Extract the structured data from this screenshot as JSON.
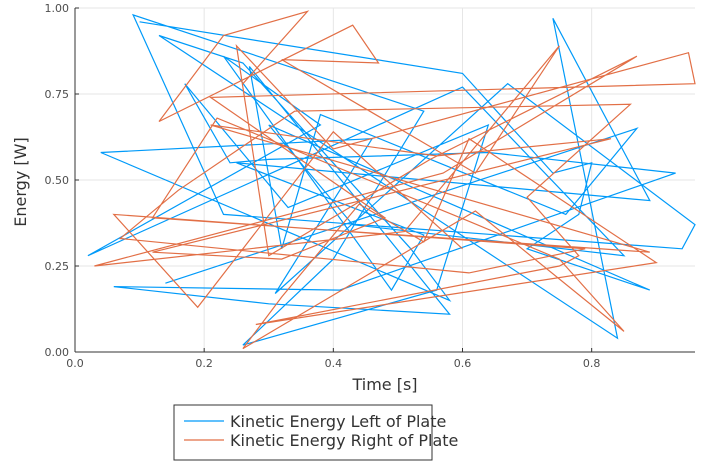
{
  "chart_data": {
    "type": "line",
    "xlabel": "Time [s]",
    "ylabel": "Energy [W]",
    "xlim": [
      0.0,
      0.96
    ],
    "ylim": [
      0.0,
      1.0
    ],
    "xticks": [
      0.0,
      0.2,
      0.4,
      0.6,
      0.8
    ],
    "xtick_labels": [
      "0.0",
      "0.2",
      "0.4",
      "0.6",
      "0.8"
    ],
    "yticks": [
      0.0,
      0.25,
      0.5,
      0.75,
      1.0
    ],
    "ytick_labels": [
      "0.00",
      "0.25",
      "0.50",
      "0.75",
      "1.00"
    ],
    "grid": true,
    "legend_position": "bottom-left, below plot",
    "series": [
      {
        "name": "Kinetic Energy Left of Plate",
        "color": "#009af9",
        "x": [
          0.1,
          0.6,
          0.74,
          0.8,
          0.78,
          0.7,
          0.89,
          0.3,
          0.43,
          0.85,
          0.6,
          0.02,
          0.38,
          0.23,
          0.49,
          0.54,
          0.25,
          0.89,
          0.74,
          0.84,
          0.13,
          0.26,
          0.52,
          0.58,
          0.04,
          0.46,
          0.31,
          0.67,
          0.96,
          0.94,
          0.23,
          0.09,
          0.54,
          0.4,
          0.26,
          0.56,
          0.64,
          0.33,
          0.17,
          0.24,
          0.3,
          0.64,
          0.93,
          0.41,
          0.06,
          0.3,
          0.58,
          0.27,
          0.32,
          0.38,
          0.76,
          0.87,
          0.14
        ],
        "y": [
          0.96,
          0.81,
          0.52,
          0.55,
          0.4,
          0.3,
          0.18,
          0.66,
          0.37,
          0.28,
          0.77,
          0.28,
          0.66,
          0.86,
          0.18,
          0.34,
          0.55,
          0.44,
          0.97,
          0.04,
          0.92,
          0.84,
          0.3,
          0.15,
          0.58,
          0.62,
          0.17,
          0.78,
          0.37,
          0.3,
          0.4,
          0.98,
          0.7,
          0.27,
          0.02,
          0.18,
          0.66,
          0.42,
          0.78,
          0.55,
          0.56,
          0.58,
          0.52,
          0.18,
          0.19,
          0.14,
          0.11,
          0.83,
          0.3,
          0.69,
          0.4,
          0.65,
          0.2
        ]
      },
      {
        "name": "Kinetic Energy Right of Plate",
        "color": "#e26f46",
        "x": [
          0.26,
          0.36,
          0.23,
          0.13,
          0.43,
          0.47,
          0.32,
          0.62,
          0.75,
          0.51,
          0.03,
          0.57,
          0.87,
          0.55,
          0.3,
          0.25,
          0.4,
          0.95,
          0.96,
          0.21,
          0.48,
          0.32,
          0.12,
          0.83,
          0.56,
          0.21,
          0.89,
          0.12,
          0.22,
          0.61,
          0.75,
          0.85,
          0.62,
          0.26,
          0.32,
          0.44,
          0.54,
          0.61,
          0.9,
          0.28,
          0.75,
          0.78,
          0.7,
          0.86,
          0.34,
          0.16,
          0.07,
          0.61,
          0.79,
          0.06,
          0.19,
          0.4,
          0.6
        ],
        "y": [
          0.78,
          0.99,
          0.92,
          0.67,
          0.95,
          0.84,
          0.85,
          0.52,
          0.89,
          0.35,
          0.25,
          0.52,
          0.86,
          0.56,
          0.28,
          0.89,
          0.59,
          0.87,
          0.78,
          0.74,
          0.39,
          0.27,
          0.29,
          0.62,
          0.57,
          0.66,
          0.29,
          0.39,
          0.68,
          0.38,
          0.27,
          0.06,
          0.41,
          0.01,
          0.16,
          0.43,
          0.32,
          0.62,
          0.26,
          0.08,
          0.25,
          0.28,
          0.45,
          0.72,
          0.7,
          0.47,
          0.33,
          0.23,
          0.3,
          0.4,
          0.13,
          0.64,
          0.3
        ]
      }
    ]
  }
}
